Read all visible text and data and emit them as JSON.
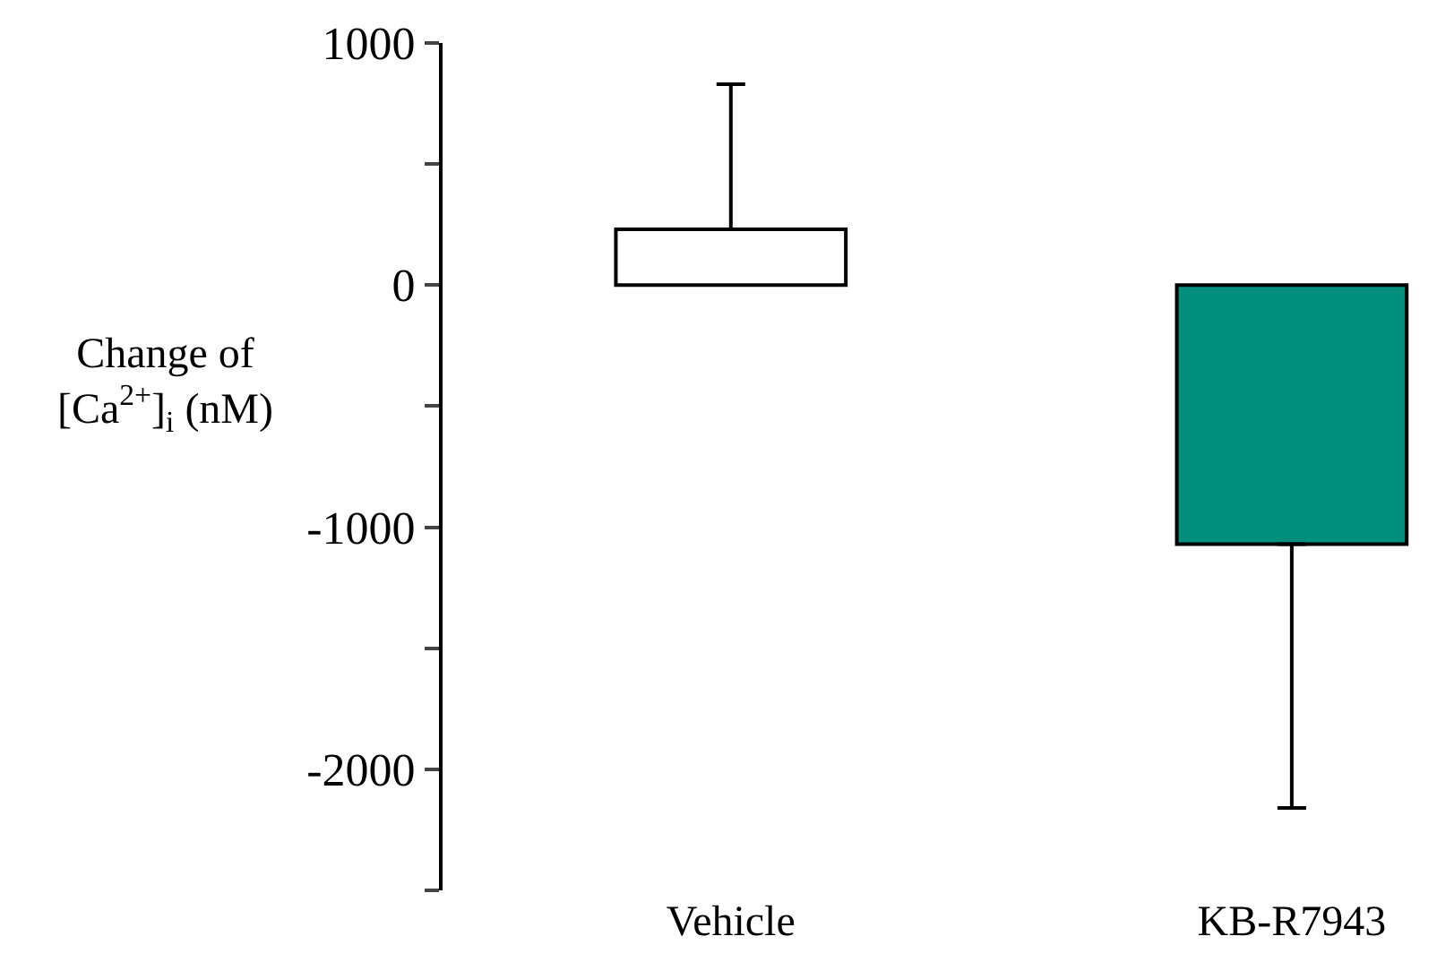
{
  "chart_data": {
    "type": "bar",
    "ylabel": "Change of\n[Ca$^{2+}$]$_{i}$ (nM)",
    "categories": [
      "Vehicle",
      "KB-R7943"
    ],
    "values": [
      230,
      -1070
    ],
    "colors": [
      "#ffffff",
      "#008f7c"
    ],
    "errors": [
      [
        230,
        830
      ],
      [
        -2160,
        -1070
      ]
    ],
    "ylim": [
      -2500,
      1000
    ],
    "yticks": [
      {
        "value": -2500,
        "label": null
      },
      -2000,
      {
        "value": -1500,
        "label": null
      },
      -1000,
      {
        "value": -500,
        "label": null
      },
      0,
      {
        "value": 500,
        "label": null
      },
      1000
    ],
    "grid": false
  }
}
